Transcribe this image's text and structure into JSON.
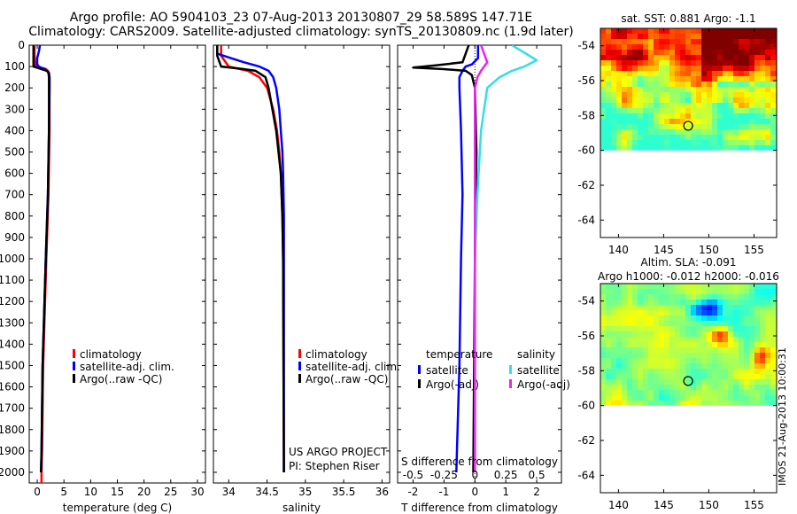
{
  "header": {
    "title_line1": "Argo profile: AO 5904103_23 07-Aug-2013 20130807_29 58.589S 147.71E",
    "title_line2": "Climatology: CARS2009. Satellite-adjusted climatology: synTS_20130809.nc (1.9d later)"
  },
  "colors": {
    "climatology": "#ff0000",
    "satellite": "#0000ff",
    "argo": "#000000",
    "sal_satellite": "#33ddee",
    "sal_argo": "#ee22ee"
  },
  "depth_axis": {
    "ylim": [
      0,
      2050
    ],
    "ticks": [
      0,
      100,
      200,
      300,
      400,
      500,
      600,
      700,
      800,
      900,
      1000,
      1100,
      1200,
      1300,
      1400,
      1500,
      1600,
      1700,
      1800,
      1900,
      2000
    ]
  },
  "chart_data": [
    {
      "type": "line",
      "xlabel": "temperature (deg C)",
      "xlim": [
        -1.5,
        31.5
      ],
      "xticks": [
        0,
        5,
        10,
        15,
        20,
        25,
        30
      ],
      "legend": [
        "climatology",
        "satellite-adj. clim.",
        "Argo(..raw -QC)"
      ],
      "series": [
        {
          "name": "climatology",
          "depth": [
            0,
            50,
            100,
            110,
            120,
            130,
            150,
            200,
            400,
            700,
            1000,
            1500,
            1900,
            2000,
            2050
          ],
          "values": [
            -0.5,
            -0.5,
            -0.3,
            1.5,
            2.0,
            2.2,
            2.3,
            2.3,
            2.3,
            2.1,
            1.7,
            1.1,
            0.9,
            0.8,
            0.8
          ]
        },
        {
          "name": "satellite-adj. clim.",
          "depth": [
            0,
            30,
            60,
            90,
            100,
            115,
            130,
            150,
            200,
            400,
            700,
            1000,
            1500,
            1900,
            2000
          ],
          "values": [
            0.5,
            0.3,
            0.0,
            0.0,
            0.3,
            1.6,
            2.2,
            2.3,
            2.3,
            2.2,
            2.0,
            1.6,
            1.0,
            0.8,
            0.7
          ]
        },
        {
          "name": "Argo(..raw -QC)",
          "depth": [
            0,
            50,
            100,
            110,
            120,
            130,
            150,
            200,
            400,
            700,
            1000,
            1500,
            1900,
            2000
          ],
          "values": [
            -0.7,
            -0.7,
            -0.7,
            0.5,
            1.8,
            2.1,
            2.2,
            2.2,
            2.2,
            2.0,
            1.6,
            1.0,
            0.8,
            0.7
          ]
        }
      ]
    },
    {
      "type": "line",
      "xlabel": "salinity",
      "xlim": [
        33.8,
        36.1
      ],
      "xticks": [
        34,
        34.5,
        35,
        35.5,
        36
      ],
      "legend": [
        "climatology",
        "satellite-adj. clim.",
        "Argo(..raw -QC)"
      ],
      "credit": [
        "US ARGO PROJECT",
        "PI: Stephen Riser"
      ],
      "series": [
        {
          "name": "climatology",
          "depth": [
            0,
            50,
            100,
            120,
            150,
            200,
            300,
            400,
            500,
            600,
            800,
            1000,
            2000
          ],
          "values": [
            33.9,
            33.9,
            34.0,
            34.25,
            34.4,
            34.5,
            34.58,
            34.63,
            34.66,
            34.68,
            34.7,
            34.71,
            34.72
          ]
        },
        {
          "name": "satellite-adj. clim.",
          "depth": [
            0,
            40,
            80,
            100,
            120,
            150,
            200,
            300,
            400,
            500,
            600,
            800,
            1000,
            2000
          ],
          "values": [
            33.85,
            33.85,
            34.2,
            34.4,
            34.52,
            34.58,
            34.62,
            34.66,
            34.68,
            34.7,
            34.71,
            34.72,
            34.72,
            34.72
          ]
        },
        {
          "name": "Argo(..raw -QC)",
          "depth": [
            0,
            50,
            100,
            110,
            120,
            150,
            200,
            300,
            400,
            500,
            600,
            800,
            1000,
            2000
          ],
          "values": [
            33.85,
            33.85,
            33.9,
            34.15,
            34.35,
            34.48,
            34.52,
            34.57,
            34.62,
            34.65,
            34.68,
            34.7,
            34.71,
            34.72
          ]
        }
      ]
    },
    {
      "type": "line",
      "xlabel": "T difference from climatology",
      "top_xlabel": "S difference from climatology",
      "xlim": [
        -2.5,
        2.8
      ],
      "xticks": [
        -2,
        -1,
        0,
        1,
        2
      ],
      "top_xticks": [
        -0.5,
        -0.25,
        0,
        0.25,
        0.5
      ],
      "top_xtick_labels": [
        "-0.5",
        "-0.25",
        "0",
        "0.25",
        "0.5"
      ],
      "legend_temperature_title": "temperature",
      "legend_salinity_title": "salinity",
      "legend_temperature": [
        "satellite",
        "Argo(-adj)"
      ],
      "legend_salinity": [
        "satellite",
        "Argo(-adj)"
      ],
      "series": [
        {
          "name": "temperature satellite",
          "depth": [
            0,
            60,
            90,
            100,
            120,
            150,
            200,
            400,
            700,
            1000,
            1500,
            2000
          ],
          "values": [
            0.1,
            0.1,
            -0.1,
            -0.3,
            -0.4,
            -0.5,
            -0.5,
            -0.45,
            -0.4,
            -0.45,
            -0.5,
            -0.6
          ]
        },
        {
          "name": "temperature Argo(-adj)",
          "depth": [
            0,
            80,
            95,
            105,
            112,
            120,
            140,
            200,
            500,
            1000,
            2000
          ],
          "values": [
            -0.2,
            -0.4,
            -1.3,
            -2.0,
            -1.0,
            -0.3,
            -0.1,
            0.0,
            0.05,
            0.0,
            -0.05
          ]
        },
        {
          "name": "salinity satellite",
          "depth": [
            0,
            70,
            100,
            120,
            150,
            200,
            400,
            700,
            1000,
            2000
          ],
          "values": [
            0.3,
            0.5,
            0.4,
            0.3,
            0.2,
            0.1,
            0.05,
            0.02,
            0.0,
            0.0
          ]
        },
        {
          "name": "salinity Argo(-adj)",
          "depth": [
            0,
            80,
            120,
            150,
            200,
            400,
            700,
            1000,
            2000
          ],
          "values": [
            0.05,
            0.1,
            0.05,
            0.02,
            0.0,
            0.0,
            0.0,
            0.0,
            0.0
          ]
        }
      ]
    },
    {
      "type": "heatmap",
      "title": "sat. SST: 0.881  Argo: -1.1",
      "xlim": [
        138,
        157.5
      ],
      "ylim": [
        -65,
        -53
      ],
      "xticks": [
        140,
        145,
        150,
        155
      ],
      "yticks": [
        -54,
        -56,
        -58,
        -60,
        -62,
        -64
      ],
      "data_lat_bottom": -60,
      "argo_position": [
        147.71,
        -58.589
      ]
    },
    {
      "type": "heatmap",
      "title_line1": "Altim. SLA: -0.091",
      "title_line2": "Argo h1000: -0.012 h2000: -0.016",
      "xlim": [
        138,
        157.5
      ],
      "ylim": [
        -65,
        -53
      ],
      "xticks": [
        140,
        145,
        150,
        155
      ],
      "yticks": [
        -54,
        -56,
        -58,
        -60,
        -62,
        -64
      ],
      "data_lat_bottom": -60,
      "argo_position": [
        147.71,
        -58.589
      ]
    }
  ],
  "stamp": "IMOS 21-Aug-2013 10:00:31"
}
